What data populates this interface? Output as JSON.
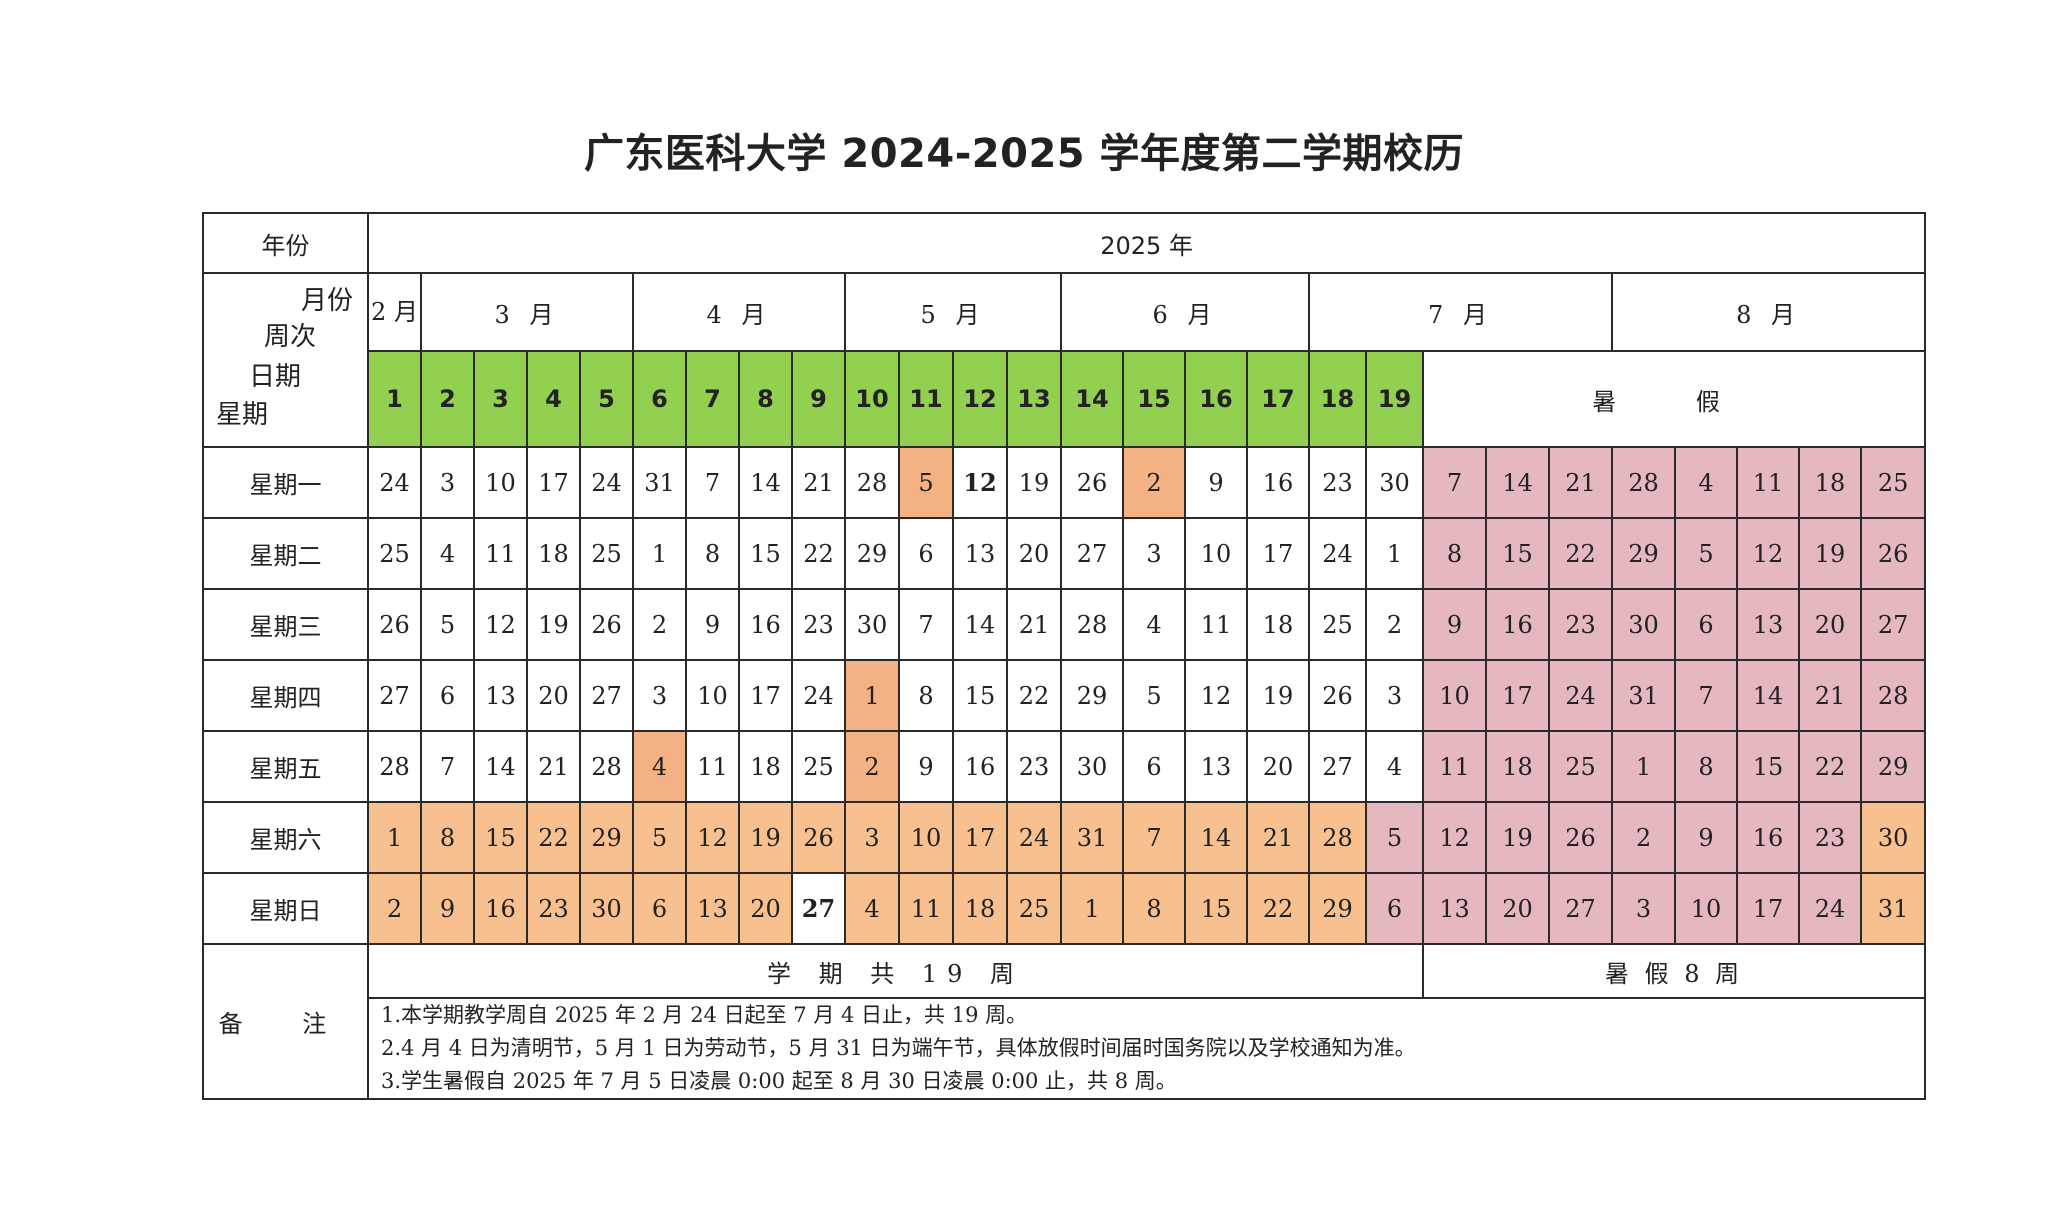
{
  "title": "广东医科大学 2024-2025 学年度第二学期校历",
  "header": {
    "year_label": "年份",
    "year_value": "2025 年",
    "month_label": "月份",
    "week_label": "周次",
    "date_label": "日期",
    "weekday_label": "星期",
    "feb": "2 月",
    "months": [
      "3 月",
      "4 月",
      "5 月",
      "6 月",
      "7 月",
      "8 月"
    ],
    "summer": "暑 假"
  },
  "weeks": [
    "1",
    "2",
    "3",
    "4",
    "5",
    "6",
    "7",
    "8",
    "9",
    "10",
    "11",
    "12",
    "13",
    "14",
    "15",
    "16",
    "17",
    "18",
    "19"
  ],
  "rows": [
    {
      "day": "星期一",
      "cells": [
        [
          "24",
          "w"
        ],
        [
          "3",
          "w"
        ],
        [
          "10",
          "w"
        ],
        [
          "17",
          "w"
        ],
        [
          "24",
          "w"
        ],
        [
          "31",
          "w"
        ],
        [
          "7",
          "w"
        ],
        [
          "14",
          "w"
        ],
        [
          "21",
          "w"
        ],
        [
          "28",
          "w"
        ],
        [
          "5",
          "h"
        ],
        [
          "12",
          "wb"
        ],
        [
          "19",
          "w"
        ],
        [
          "26",
          "w"
        ],
        [
          "2",
          "h"
        ],
        [
          "9",
          "w"
        ],
        [
          "16",
          "w"
        ],
        [
          "23",
          "w"
        ],
        [
          "30",
          "w"
        ],
        [
          "7",
          "p"
        ],
        [
          "14",
          "p"
        ],
        [
          "21",
          "p"
        ],
        [
          "28",
          "p"
        ],
        [
          "4",
          "p"
        ],
        [
          "11",
          "p"
        ],
        [
          "18",
          "p"
        ],
        [
          "25",
          "p"
        ]
      ]
    },
    {
      "day": "星期二",
      "cells": [
        [
          "25",
          "w"
        ],
        [
          "4",
          "w"
        ],
        [
          "11",
          "w"
        ],
        [
          "18",
          "w"
        ],
        [
          "25",
          "w"
        ],
        [
          "1",
          "w"
        ],
        [
          "8",
          "w"
        ],
        [
          "15",
          "w"
        ],
        [
          "22",
          "w"
        ],
        [
          "29",
          "w"
        ],
        [
          "6",
          "w"
        ],
        [
          "13",
          "w"
        ],
        [
          "20",
          "w"
        ],
        [
          "27",
          "w"
        ],
        [
          "3",
          "w"
        ],
        [
          "10",
          "w"
        ],
        [
          "17",
          "w"
        ],
        [
          "24",
          "w"
        ],
        [
          "1",
          "w"
        ],
        [
          "8",
          "p"
        ],
        [
          "15",
          "p"
        ],
        [
          "22",
          "p"
        ],
        [
          "29",
          "p"
        ],
        [
          "5",
          "p"
        ],
        [
          "12",
          "p"
        ],
        [
          "19",
          "p"
        ],
        [
          "26",
          "p"
        ]
      ]
    },
    {
      "day": "星期三",
      "cells": [
        [
          "26",
          "w"
        ],
        [
          "5",
          "w"
        ],
        [
          "12",
          "w"
        ],
        [
          "19",
          "w"
        ],
        [
          "26",
          "w"
        ],
        [
          "2",
          "w"
        ],
        [
          "9",
          "w"
        ],
        [
          "16",
          "w"
        ],
        [
          "23",
          "w"
        ],
        [
          "30",
          "w"
        ],
        [
          "7",
          "w"
        ],
        [
          "14",
          "w"
        ],
        [
          "21",
          "w"
        ],
        [
          "28",
          "w"
        ],
        [
          "4",
          "w"
        ],
        [
          "11",
          "w"
        ],
        [
          "18",
          "w"
        ],
        [
          "25",
          "w"
        ],
        [
          "2",
          "w"
        ],
        [
          "9",
          "p"
        ],
        [
          "16",
          "p"
        ],
        [
          "23",
          "p"
        ],
        [
          "30",
          "p"
        ],
        [
          "6",
          "p"
        ],
        [
          "13",
          "p"
        ],
        [
          "20",
          "p"
        ],
        [
          "27",
          "p"
        ]
      ]
    },
    {
      "day": "星期四",
      "cells": [
        [
          "27",
          "w"
        ],
        [
          "6",
          "w"
        ],
        [
          "13",
          "w"
        ],
        [
          "20",
          "w"
        ],
        [
          "27",
          "w"
        ],
        [
          "3",
          "w"
        ],
        [
          "10",
          "w"
        ],
        [
          "17",
          "w"
        ],
        [
          "24",
          "w"
        ],
        [
          "1",
          "h"
        ],
        [
          "8",
          "w"
        ],
        [
          "15",
          "w"
        ],
        [
          "22",
          "w"
        ],
        [
          "29",
          "w"
        ],
        [
          "5",
          "w"
        ],
        [
          "12",
          "w"
        ],
        [
          "19",
          "w"
        ],
        [
          "26",
          "w"
        ],
        [
          "3",
          "w"
        ],
        [
          "10",
          "p"
        ],
        [
          "17",
          "p"
        ],
        [
          "24",
          "p"
        ],
        [
          "31",
          "p"
        ],
        [
          "7",
          "p"
        ],
        [
          "14",
          "p"
        ],
        [
          "21",
          "p"
        ],
        [
          "28",
          "p"
        ]
      ]
    },
    {
      "day": "星期五",
      "cells": [
        [
          "28",
          "w"
        ],
        [
          "7",
          "w"
        ],
        [
          "14",
          "w"
        ],
        [
          "21",
          "w"
        ],
        [
          "28",
          "w"
        ],
        [
          "4",
          "h"
        ],
        [
          "11",
          "w"
        ],
        [
          "18",
          "w"
        ],
        [
          "25",
          "w"
        ],
        [
          "2",
          "h"
        ],
        [
          "9",
          "w"
        ],
        [
          "16",
          "w"
        ],
        [
          "23",
          "w"
        ],
        [
          "30",
          "w"
        ],
        [
          "6",
          "w"
        ],
        [
          "13",
          "w"
        ],
        [
          "20",
          "w"
        ],
        [
          "27",
          "w"
        ],
        [
          "4",
          "w"
        ],
        [
          "11",
          "p"
        ],
        [
          "18",
          "p"
        ],
        [
          "25",
          "p"
        ],
        [
          "1",
          "p"
        ],
        [
          "8",
          "p"
        ],
        [
          "15",
          "p"
        ],
        [
          "22",
          "p"
        ],
        [
          "29",
          "p"
        ]
      ]
    },
    {
      "day": "星期六",
      "cells": [
        [
          "1",
          "o"
        ],
        [
          "8",
          "o"
        ],
        [
          "15",
          "o"
        ],
        [
          "22",
          "o"
        ],
        [
          "29",
          "o"
        ],
        [
          "5",
          "o"
        ],
        [
          "12",
          "o"
        ],
        [
          "19",
          "o"
        ],
        [
          "26",
          "o"
        ],
        [
          "3",
          "o"
        ],
        [
          "10",
          "o"
        ],
        [
          "17",
          "o"
        ],
        [
          "24",
          "o"
        ],
        [
          "31",
          "o"
        ],
        [
          "7",
          "o"
        ],
        [
          "14",
          "o"
        ],
        [
          "21",
          "o"
        ],
        [
          "28",
          "o"
        ],
        [
          "5",
          "p"
        ],
        [
          "12",
          "p"
        ],
        [
          "19",
          "p"
        ],
        [
          "26",
          "p"
        ],
        [
          "2",
          "p"
        ],
        [
          "9",
          "p"
        ],
        [
          "16",
          "p"
        ],
        [
          "23",
          "p"
        ],
        [
          "30",
          "o"
        ]
      ]
    },
    {
      "day": "星期日",
      "cells": [
        [
          "2",
          "o"
        ],
        [
          "9",
          "o"
        ],
        [
          "16",
          "o"
        ],
        [
          "23",
          "o"
        ],
        [
          "30",
          "o"
        ],
        [
          "6",
          "o"
        ],
        [
          "13",
          "o"
        ],
        [
          "20",
          "o"
        ],
        [
          "27",
          "wb"
        ],
        [
          "4",
          "o"
        ],
        [
          "11",
          "o"
        ],
        [
          "18",
          "o"
        ],
        [
          "25",
          "o"
        ],
        [
          "1",
          "o"
        ],
        [
          "8",
          "o"
        ],
        [
          "15",
          "o"
        ],
        [
          "22",
          "o"
        ],
        [
          "29",
          "o"
        ],
        [
          "6",
          "p"
        ],
        [
          "13",
          "p"
        ],
        [
          "20",
          "p"
        ],
        [
          "27",
          "p"
        ],
        [
          "3",
          "p"
        ],
        [
          "10",
          "p"
        ],
        [
          "17",
          "p"
        ],
        [
          "24",
          "p"
        ],
        [
          "31",
          "o"
        ]
      ]
    }
  ],
  "footer": {
    "notes_label": "备 注",
    "semester_total": "学 期 共 19 周",
    "summer_total": "暑 假 8 周",
    "notes": [
      "1.本学期教学周自 2025 年 2 月 24 日起至 7 月 4 日止，共 19 周。",
      "2.4 月 4 日为清明节，5 月 1 日为劳动节，5 月 31 日为端午节，具体放假时间届时国务院以及学校通知为准。",
      "3.学生暑假自 2025 年 7 月 5 日凌晨 0:00 起至 8 月 30 日凌晨 0:00 止，共 8 周。"
    ]
  },
  "colors": {
    "teaching_week_header": "#92d050",
    "weekend": "#f8c08f",
    "summer_vacation": "#e5b8bf",
    "holiday": "#f4b183"
  }
}
